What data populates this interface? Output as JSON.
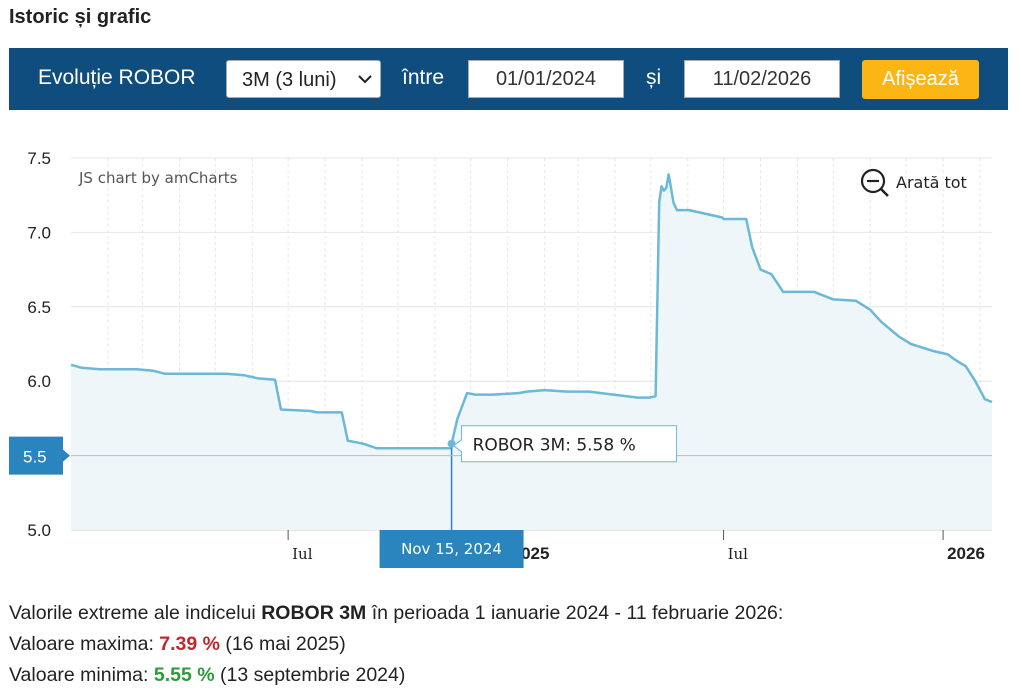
{
  "section_title": "Istoric și grafic",
  "controls": {
    "label": "Evoluție ROBOR",
    "period_value": "3M (3 luni)",
    "between_label": "între",
    "start_date": "01/01/2024",
    "and_label": "și",
    "end_date": "11/02/2026",
    "button_label": "Afișează",
    "colors": {
      "bar_bg": "#0f4d7f",
      "button": "#fcb613"
    }
  },
  "chart_meta": {
    "credit": "JS chart by amCharts",
    "zoom_label": "Arată tot",
    "tooltip_text": "ROBOR 3M: 5.58 %",
    "y_cursor_label": "5.5",
    "x_cursor_label": "Nov 15, 2024",
    "line_color": "#6bb8d8",
    "fill_color": "#eef6fa",
    "cursor_color": "#2a84bd"
  },
  "chart_data": {
    "type": "area",
    "series": [
      {
        "x": [
          "2024-01-01",
          "2024-01-10",
          "2024-01-25",
          "2024-02-10",
          "2024-02-25",
          "2024-03-10",
          "2024-03-20",
          "2024-04-15",
          "2024-05-10",
          "2024-05-25",
          "2024-06-05",
          "2024-06-20",
          "2024-06-25",
          "2024-07-20",
          "2024-07-25",
          "2024-08-15",
          "2024-08-20",
          "2024-09-02",
          "2024-09-13",
          "2024-10-15",
          "2024-11-14",
          "2024-11-15",
          "2024-11-20",
          "2024-11-28",
          "2024-12-05",
          "2024-12-20",
          "2025-01-10",
          "2025-01-17",
          "2025-02-01",
          "2025-02-20",
          "2025-03-10",
          "2025-04-10",
          "2025-04-20",
          "2025-04-30",
          "2025-05-05",
          "2025-05-08",
          "2025-05-10",
          "2025-05-12",
          "2025-05-14",
          "2025-05-16",
          "2025-05-20",
          "2025-05-23",
          "2025-05-26",
          "2025-06-02",
          "2025-06-30",
          "2025-07-01",
          "2025-07-20",
          "2025-07-25",
          "2025-08-01",
          "2025-08-10",
          "2025-08-20",
          "2025-09-15",
          "2025-10-01",
          "2025-10-20",
          "2025-11-01",
          "2025-11-10",
          "2025-11-25",
          "2025-12-05",
          "2025-12-25",
          "2026-01-05",
          "2026-01-10",
          "2026-01-20",
          "2026-01-28",
          "2026-02-05",
          "2026-02-11"
        ],
        "y": [
          6.11,
          6.09,
          6.08,
          6.08,
          6.08,
          6.07,
          6.05,
          6.05,
          6.05,
          6.04,
          6.02,
          6.01,
          5.81,
          5.8,
          5.79,
          5.79,
          5.6,
          5.58,
          5.55,
          5.55,
          5.55,
          5.58,
          5.75,
          5.92,
          5.91,
          5.91,
          5.92,
          5.93,
          5.94,
          5.93,
          5.93,
          5.9,
          5.89,
          5.89,
          5.9,
          7.2,
          7.31,
          7.28,
          7.3,
          7.39,
          7.2,
          7.15,
          7.15,
          7.15,
          7.1,
          7.09,
          7.09,
          6.9,
          6.75,
          6.72,
          6.6,
          6.6,
          6.55,
          6.54,
          6.48,
          6.4,
          6.3,
          6.25,
          6.2,
          6.18,
          6.15,
          6.1,
          6.0,
          5.88,
          5.86
        ]
      }
    ],
    "y_ticks": [
      "5.0",
      "5.5",
      "6.0",
      "6.5",
      "7.0",
      "7.5"
    ],
    "ylim": [
      5.0,
      7.5
    ],
    "x_ticks": [
      "Iul",
      "2025",
      "Iul",
      "2026"
    ],
    "x_range": [
      "2024-01-01",
      "2026-02-11"
    ],
    "grid": true
  },
  "summary": {
    "intro_prefix": "Valorile extreme ale indicelui ",
    "index_name": "ROBOR 3M",
    "intro_suffix": " în perioada 1 ianuarie 2024 - 11 februarie 2026:",
    "max_label": "Valoare maxima: ",
    "max_value": "7.39 %",
    "max_date": " (16 mai 2025)",
    "min_label": "Valoare minima: ",
    "min_value": "5.55 %",
    "min_date": " (13 septembrie 2024)"
  }
}
